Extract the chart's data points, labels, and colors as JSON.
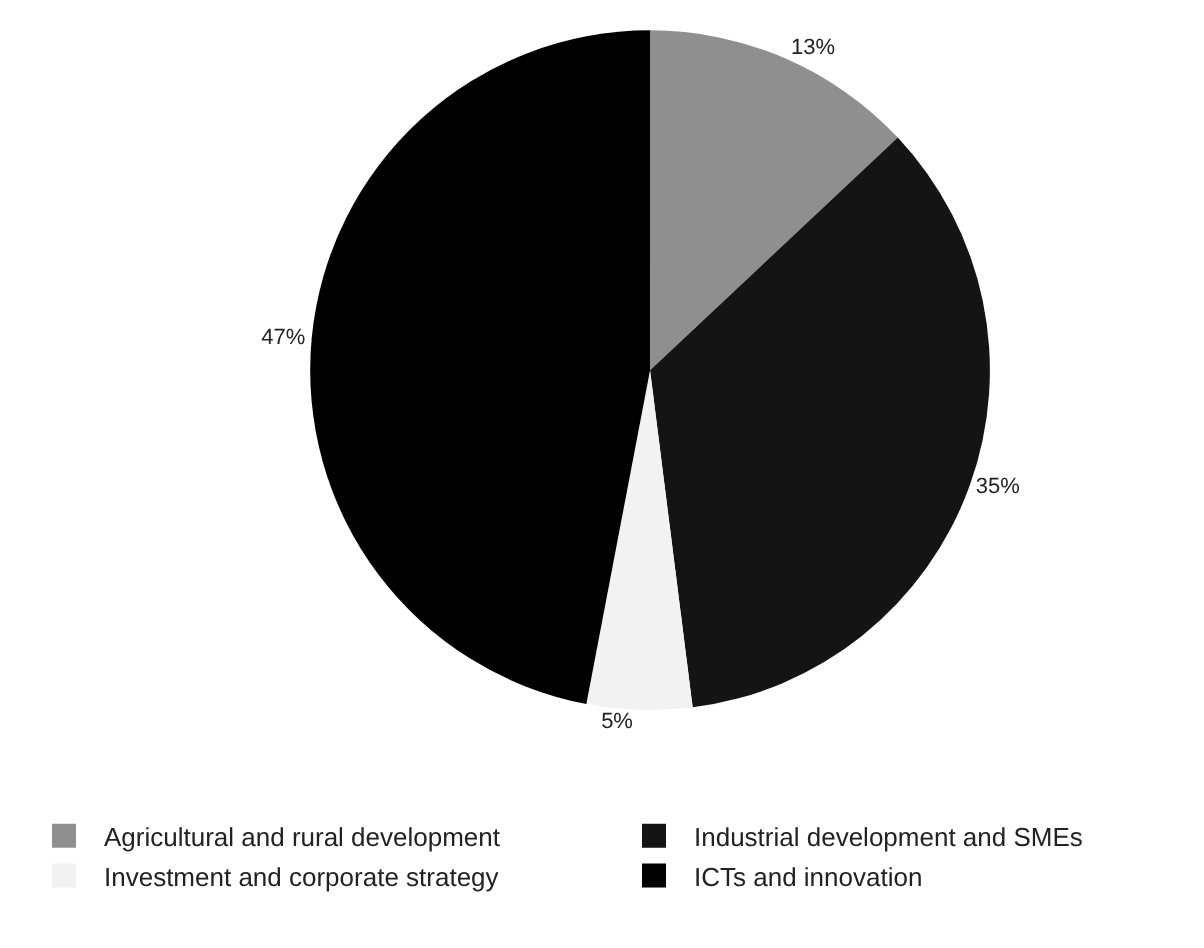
{
  "chart_data": {
    "type": "pie",
    "categories": [
      "Agricultural and rural development",
      "Industrial development and SMEs",
      "Investment and corporate strategy",
      "ICTs and innovation"
    ],
    "values": [
      13,
      35,
      5,
      47
    ],
    "colors": [
      "#8f8f8f",
      "#141414",
      "#f2f2f2",
      "#000000"
    ],
    "value_labels": [
      "13%",
      "35%",
      "5%",
      "47%"
    ],
    "legend": "bottom"
  }
}
